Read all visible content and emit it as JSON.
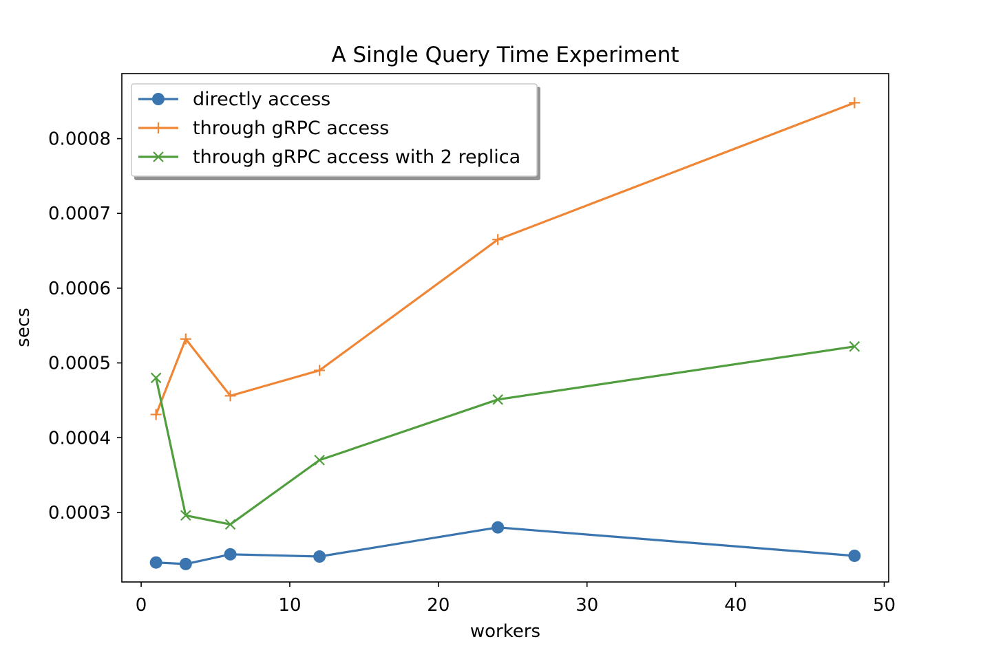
{
  "chart_data": {
    "type": "line",
    "title": "A Single Query Time Experiment",
    "xlabel": "workers",
    "ylabel": "secs",
    "xlim": [
      -1.3,
      50.3
    ],
    "ylim": [
      0.000207,
      0.000887
    ],
    "x_ticks": [
      0,
      10,
      20,
      30,
      40,
      50
    ],
    "x_tick_labels": [
      "0",
      "10",
      "20",
      "30",
      "40",
      "50"
    ],
    "y_ticks": [
      0.0003,
      0.0004,
      0.0005,
      0.0006,
      0.0007,
      0.0008
    ],
    "y_tick_labels": [
      "0.0003",
      "0.0004",
      "0.0005",
      "0.0006",
      "0.0007",
      "0.0008"
    ],
    "grid": false,
    "legend_position": "upper-left",
    "x": [
      1,
      3,
      6,
      12,
      24,
      48
    ],
    "series": [
      {
        "name": "directly access",
        "color": "#3a75b0",
        "marker": "circle",
        "values": [
          0.000233,
          0.000231,
          0.000244,
          0.000241,
          0.00028,
          0.000242
        ]
      },
      {
        "name": "through gRPC access",
        "color": "#ef8636",
        "marker": "plus",
        "values": [
          0.000431,
          0.000532,
          0.000456,
          0.00049,
          0.000665,
          0.000848
        ]
      },
      {
        "name": "through gRPC access with 2 replica",
        "color": "#519e3e",
        "marker": "x",
        "values": [
          0.00048,
          0.000296,
          0.000284,
          0.00037,
          0.000451,
          0.000522
        ]
      }
    ]
  }
}
